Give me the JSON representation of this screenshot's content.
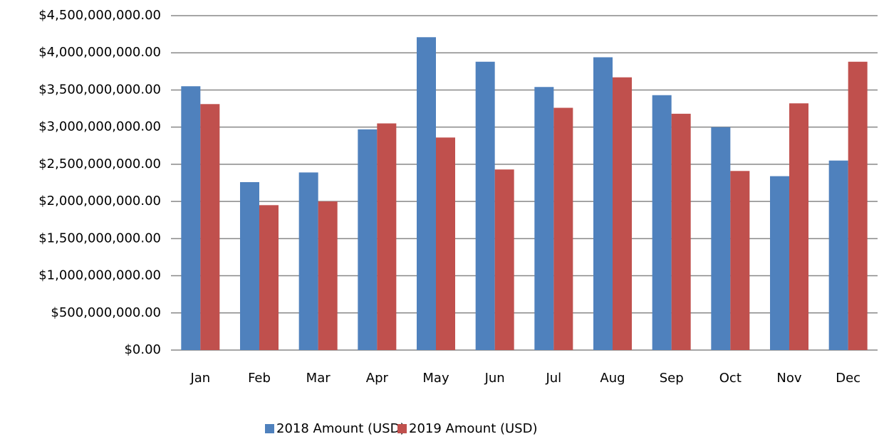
{
  "chart_data": {
    "type": "bar",
    "categories": [
      "Jan",
      "Feb",
      "Mar",
      "Apr",
      "May",
      "Jun",
      "Jul",
      "Aug",
      "Sep",
      "Oct",
      "Nov",
      "Dec"
    ],
    "series": [
      {
        "name": "2018 Amount (USD)",
        "color": "#4f81bd",
        "values": [
          3550000000,
          2260000000,
          2390000000,
          2970000000,
          4210000000,
          3880000000,
          3540000000,
          3940000000,
          3430000000,
          3000000000,
          2340000000,
          2550000000
        ]
      },
      {
        "name": "2019 Amount (USD)",
        "color": "#c0504d",
        "values": [
          3310000000,
          1950000000,
          2000000000,
          3050000000,
          2860000000,
          2430000000,
          3260000000,
          3670000000,
          3180000000,
          2410000000,
          3320000000,
          3880000000
        ]
      }
    ],
    "ylim": [
      0,
      4500000000
    ],
    "yticks": [
      {
        "value": 0,
        "label": "$0.00"
      },
      {
        "value": 500000000,
        "label": "$500,000,000.00"
      },
      {
        "value": 1000000000,
        "label": "$1,000,000,000.00"
      },
      {
        "value": 1500000000,
        "label": "$1,500,000,000.00"
      },
      {
        "value": 2000000000,
        "label": "$2,000,000,000.00"
      },
      {
        "value": 2500000000,
        "label": "$2,500,000,000.00"
      },
      {
        "value": 3000000000,
        "label": "$3,000,000,000.00"
      },
      {
        "value": 3500000000,
        "label": "$3,500,000,000.00"
      },
      {
        "value": 4000000000,
        "label": "$4,000,000,000.00"
      },
      {
        "value": 4500000000,
        "label": "$4,500,000,000.00"
      }
    ],
    "grid": true,
    "legend": "bottom"
  }
}
